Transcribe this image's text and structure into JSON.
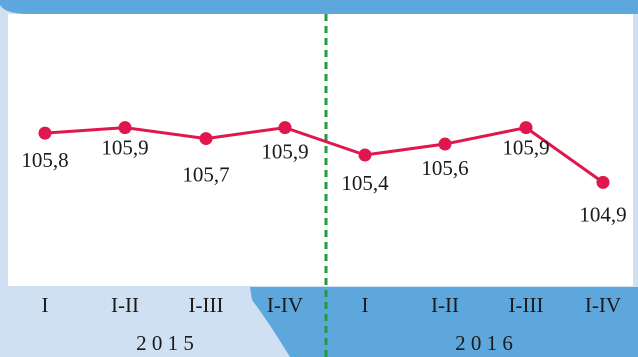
{
  "theme": {
    "background": "#cfe0f3",
    "band": "#5ea7dc",
    "plot_background": "#ffffff",
    "line_color": "#e0174f",
    "divider_color": "#1f9e3a"
  },
  "chart_data": {
    "type": "line",
    "categories": [
      "I",
      "I-II",
      "I-III",
      "I-IV",
      "I",
      "I-II",
      "I-III",
      "I-IV"
    ],
    "groups": [
      {
        "label": "2 0 1 5",
        "span": [
          0,
          3
        ]
      },
      {
        "label": "2 0 1 6",
        "span": [
          4,
          7
        ]
      }
    ],
    "values": [
      105.8,
      105.9,
      105.7,
      105.9,
      105.4,
      105.6,
      105.9,
      104.9
    ],
    "value_labels": [
      "105,8",
      "105,9",
      "105,7",
      "105,9",
      "105,4",
      "105,6",
      "105,9",
      "104,9"
    ],
    "ylim": [
      103.3,
      107.5
    ],
    "divider_after_index": 3,
    "grid": false,
    "legend": "none"
  }
}
